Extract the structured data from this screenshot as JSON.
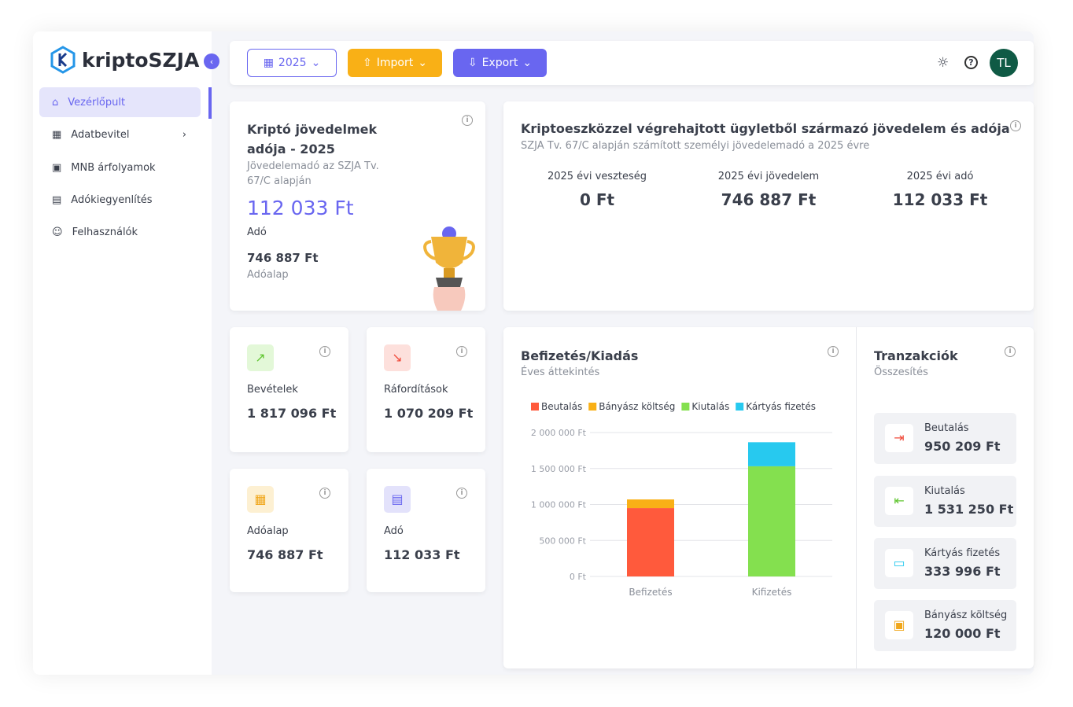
{
  "sidebar": {
    "logo": "kriptoSZJA",
    "nav": [
      "Vezérlőpult",
      "Adatbevitel",
      "MNB árfolyamok",
      "Adókiegyenlítés",
      "Felhasználók"
    ]
  },
  "toolbar": {
    "year": "2025",
    "import": "Import",
    "export": "Export",
    "avatar": "TL"
  },
  "summary_card": {
    "title": "Kriptó jövedelmek adója - 2025",
    "subtitle": "Jövedelemadó az SZJA Tv. 67/C alapján",
    "amount": "112 033 Ft",
    "amount_label": "Adó",
    "base": "746 887 Ft",
    "base_label": "Adóalap"
  },
  "income_card": {
    "title": "Kriptoeszközzel végrehajtott ügyletből származó jövedelem és adója",
    "subtitle": "SZJA Tv. 67/C alapján számított személyi jövedelemadó a 2025 évre",
    "stats": [
      {
        "label": "2025 évi veszteség",
        "value": "0 Ft"
      },
      {
        "label": "2025 évi jövedelem",
        "value": "746 887 Ft"
      },
      {
        "label": "2025 évi adó",
        "value": "112 033 Ft"
      }
    ]
  },
  "kpis": [
    {
      "label": "Bevételek",
      "value": "1 817 096 Ft"
    },
    {
      "label": "Ráfordítások",
      "value": "1 070 209 Ft"
    },
    {
      "label": "Adóalap",
      "value": "746 887 Ft"
    },
    {
      "label": "Adó",
      "value": "112 033 Ft"
    }
  ],
  "chart_data": {
    "type": "bar",
    "stacked": true,
    "title": "Befizetés/Kiadás",
    "subtitle": "Éves áttekintés",
    "legend": "top-left",
    "grid": true,
    "categories": [
      "Befizetés",
      "Kifizetés"
    ],
    "series": [
      {
        "name": "Beutalás",
        "color": "#ff5a3c",
        "values": [
          950209,
          0
        ]
      },
      {
        "name": "Bányász költség",
        "color": "#f9b016",
        "values": [
          120000,
          0
        ]
      },
      {
        "name": "Kiutalás",
        "color": "#84e04f",
        "values": [
          0,
          1531250
        ]
      },
      {
        "name": "Kártyás fizetés",
        "color": "#27c9ef",
        "values": [
          0,
          333996
        ]
      }
    ],
    "ylim": [
      0,
      2000000
    ],
    "yticks": [
      {
        "value": 0,
        "label": "0 Ft"
      },
      {
        "value": 500000,
        "label": "500 000 Ft"
      },
      {
        "value": 1000000,
        "label": "1 000 000 Ft"
      },
      {
        "value": 1500000,
        "label": "1 500 000 Ft"
      },
      {
        "value": 2000000,
        "label": "2 000 000 Ft"
      }
    ]
  },
  "transactions": {
    "title": "Tranzakciók",
    "subtitle": "Összesítés",
    "items": [
      {
        "label": "Beutalás",
        "value": "950 209 Ft"
      },
      {
        "label": "Kiutalás",
        "value": "1 531 250 Ft"
      },
      {
        "label": "Kártyás fizetés",
        "value": "333 996 Ft"
      },
      {
        "label": "Bányász költség",
        "value": "120 000 Ft"
      }
    ]
  }
}
